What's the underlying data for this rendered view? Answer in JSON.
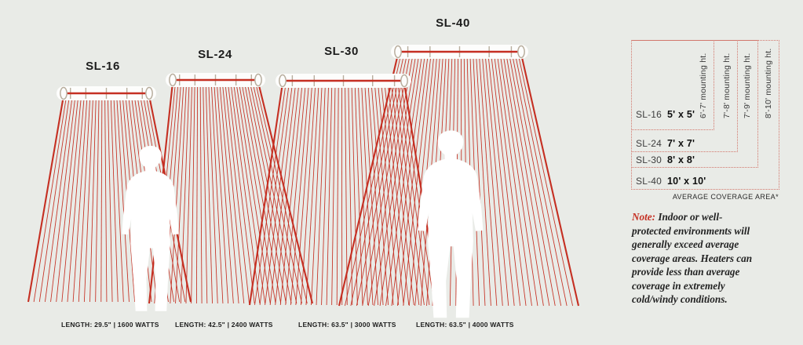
{
  "colors": {
    "background": "#e9ebe7",
    "red": "#c52f22",
    "tan": "#b8ae9e",
    "dotted_border": "#d2776c",
    "white": "#fdfdfc"
  },
  "products": [
    {
      "name": "SL-16",
      "footer": "LENGTH: 29.5\" | 1600 WATTS",
      "coverage": "5' x 5'",
      "mounting": "6'-7' mounting ht."
    },
    {
      "name": "SL-24",
      "footer": "LENGTH: 42.5\" | 2400 WATTS",
      "coverage": "7' x 7'",
      "mounting": "7'-8' mounting ht."
    },
    {
      "name": "SL-30",
      "footer": "LENGTH: 63.5\" | 3000 WATTS",
      "coverage": "8' x 8'",
      "mounting": "7'-9' mounting ht."
    },
    {
      "name": "SL-40",
      "footer": "LENGTH: 63.5\" | 4000 WATTS",
      "coverage": "10' x 10'",
      "mounting": "8'-10' mounting ht."
    }
  ],
  "legend_caption": "AVERAGE COVERAGE AREA*",
  "note": {
    "label": "Note:",
    "text": "Indoor or well-\nprotected environments will\ngenerally exceed average\ncoverage areas. Heaters can\nprovide less than average\ncoverage in extremely\ncold/windy conditions."
  }
}
